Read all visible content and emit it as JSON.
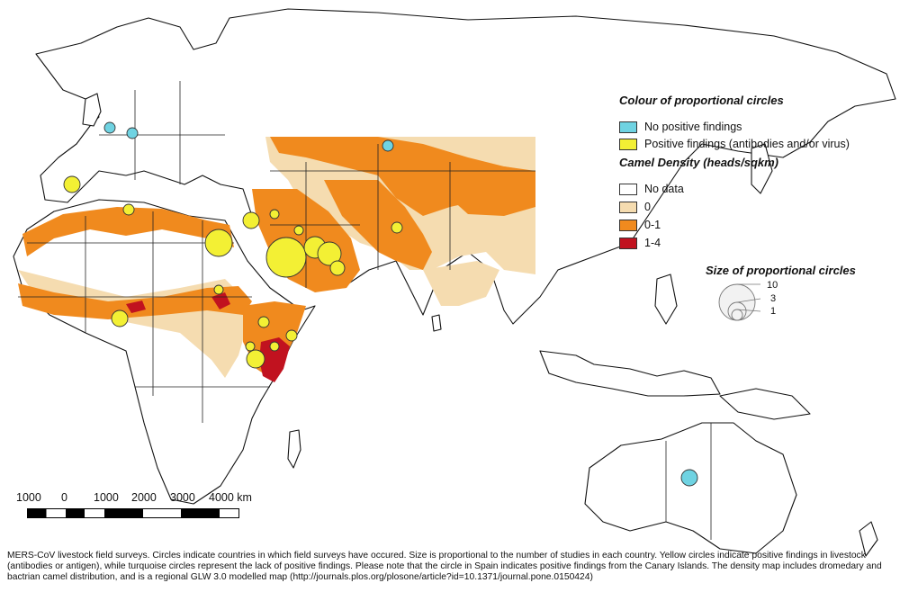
{
  "legend": {
    "circle_colour_title": "Colour of proportional circles",
    "circle_colours": [
      {
        "label": "No positive findings",
        "color": "#6fd3e2"
      },
      {
        "label": "Positive findings (antibodies and/or virus)",
        "color": "#f3f034"
      }
    ],
    "density_title": "Camel Density (heads/sqkm)",
    "density_classes": [
      {
        "label": "No data",
        "color": "#ffffff"
      },
      {
        "label": "0",
        "color": "#f5dcb0"
      },
      {
        "label": "0-1",
        "color": "#f08a1e"
      },
      {
        "label": "1-4",
        "color": "#c1121f"
      }
    ],
    "size_title": "Size of proportional circles",
    "size_values": [
      "10",
      "3",
      "1"
    ]
  },
  "scale_bar": {
    "labels": [
      "1000",
      "0",
      "1000",
      "2000",
      "3000",
      "4000 km"
    ]
  },
  "caption": "MERS-CoV livestock field surveys. Circles indicate countries in which field surveys have occured. Size is proportional to the number of studies in each country. Yellow circles indicate positive findings in livestock (antibodies or antigen), while turquoise circles represent the lack of positive findings. Please note that the circle in Spain indicates positive findings from the Canary Islands. The density map includes dromedary and bactrian camel distribution, and is a regional GLW 3.0 modelled map (http://journals.plos.org/plosone/article?id=10.1371/journal.pone.0150424)"
}
